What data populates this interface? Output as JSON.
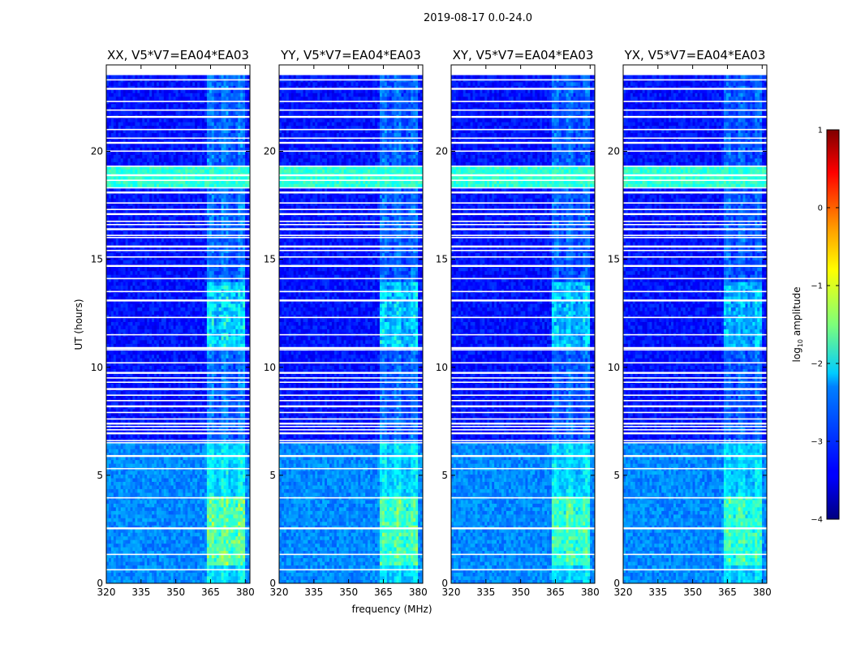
{
  "chart_data": {
    "type": "heatmap",
    "suptitle": "2019-08-17 0.0-24.0",
    "xlabel": "frequency (MHz)",
    "ylabel": "UT (hours)",
    "xlim": [
      320,
      382
    ],
    "ylim": [
      0,
      24
    ],
    "x_ticks": [
      "320",
      "335",
      "350",
      "365",
      "380"
    ],
    "x_tick_values": [
      320,
      335,
      350,
      365,
      380
    ],
    "y_ticks": [
      "0",
      "5",
      "10",
      "15",
      "20"
    ],
    "y_tick_values": [
      0,
      5,
      10,
      15,
      20
    ],
    "colorbar": {
      "label": "log",
      "label_sub": "10",
      "label_suffix": " amplitude",
      "range": [
        -4,
        1
      ],
      "ticks": [
        "1",
        "0",
        "−1",
        "−2",
        "−3",
        "−4"
      ],
      "tick_values": [
        1,
        0,
        -1,
        -2,
        -3,
        -4
      ],
      "colormap": "jet"
    },
    "panels": [
      {
        "title": "XX, V5*V7=EA04*EA03",
        "rfi_strength": 1.0
      },
      {
        "title": "YY, V5*V7=EA04*EA03",
        "rfi_strength": 0.9
      },
      {
        "title": "XY, V5*V7=EA04*EA03",
        "rfi_strength": 0.85
      },
      {
        "title": "YX, V5*V7=EA04*EA03",
        "rfi_strength": 0.8
      }
    ],
    "rfi_frequency_range_mhz": [
      363,
      380
    ],
    "flagged_ut_hours": [
      0.0,
      0.62,
      1.33,
      2.55,
      3.95,
      5.3,
      5.9,
      6.5,
      6.6,
      6.95,
      7.1,
      7.25,
      7.4,
      7.6,
      7.9,
      8.2,
      8.45,
      8.7,
      9.0,
      9.3,
      9.5,
      9.75,
      10.2,
      10.8,
      10.9,
      11.5,
      12.3,
      13.1,
      13.5,
      14.1,
      14.7,
      15.1,
      15.4,
      15.6,
      16.0,
      16.1,
      16.4,
      16.6,
      16.75,
      17.1,
      17.3,
      17.6,
      18.1,
      18.3,
      18.65,
      18.9,
      19.3,
      20.0,
      20.4,
      20.6,
      21.0,
      21.6,
      21.9,
      22.3,
      22.9,
      23.3,
      23.55
    ]
  }
}
